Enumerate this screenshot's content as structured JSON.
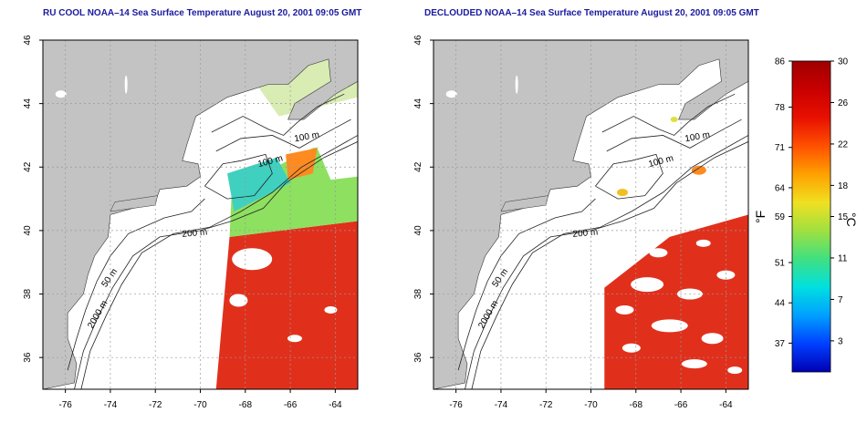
{
  "panels": [
    {
      "id": "left",
      "title": "RU COOL NOAA–14 Sea Surface Temperature August 20, 2001 09:05 GMT",
      "variant": "raw"
    },
    {
      "id": "right",
      "title": "DECLOUDED NOAA–14 Sea Surface Temperature August 20, 2001 09:05 GMT",
      "variant": "declouded"
    }
  ],
  "axes": {
    "lon_ticks": [
      "-76",
      "-74",
      "-72",
      "-70",
      "-68",
      "-66",
      "-64"
    ],
    "lon_values": [
      -76,
      -74,
      -72,
      -70,
      -68,
      -66,
      -64
    ],
    "lat_ticks": [
      "36",
      "38",
      "40",
      "42",
      "44",
      "46"
    ],
    "lat_values": [
      36,
      38,
      40,
      42,
      44,
      46
    ],
    "lon_range": [
      -77,
      -63
    ],
    "lat_range": [
      35,
      46
    ]
  },
  "contour_labels": [
    "100 m",
    "100 m",
    "200 m",
    "50 m",
    "2000 m"
  ],
  "colorbar": {
    "unit_f": "°F",
    "unit_c": "°C",
    "f_ticks": [
      "86",
      "78",
      "71",
      "64",
      "59",
      "51",
      "44",
      "37"
    ],
    "f_values": [
      86,
      78,
      71,
      64,
      59,
      51,
      44,
      37
    ],
    "c_ticks": [
      "30",
      "26",
      "22",
      "18",
      "15",
      "11",
      "7",
      "3"
    ],
    "c_values": [
      30,
      26,
      22,
      18,
      15,
      11,
      7,
      3
    ],
    "c_range": [
      0,
      30
    ],
    "colors": [
      "#0000b4",
      "#0040ff",
      "#00a0ff",
      "#00e0e0",
      "#40e080",
      "#a0e040",
      "#f0e020",
      "#ffa000",
      "#ff5000",
      "#e81000",
      "#c80000",
      "#a00000"
    ]
  },
  "colors": {
    "land": "#c3c3c3",
    "no_data": "#ffffff",
    "title": "#1a1aa0",
    "sst_warm": "#e8281a"
  }
}
